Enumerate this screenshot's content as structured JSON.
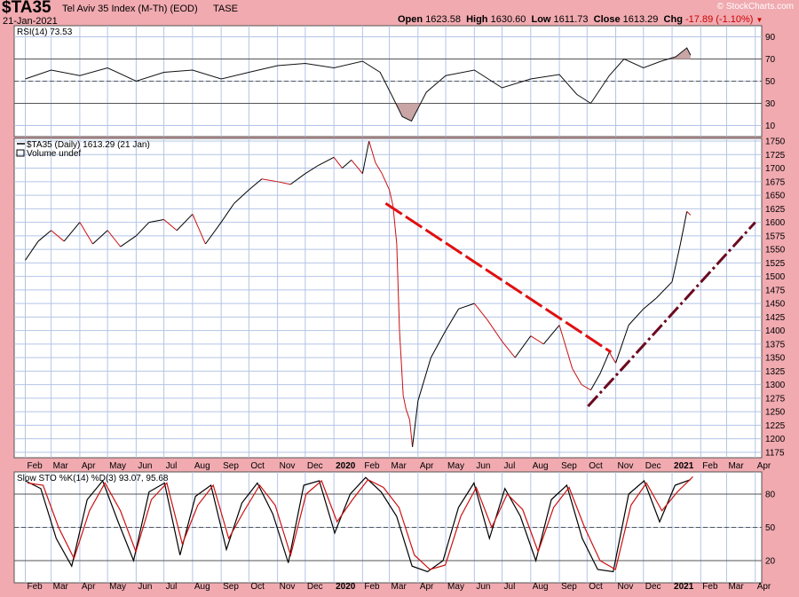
{
  "header": {
    "symbol": "$TA35",
    "name": "Tel Aviv 35 Index (M-Th) (EOD)",
    "exchange": "TASE",
    "date": "21-Jan-2021",
    "copyright": "© StockCharts.com",
    "quote": {
      "open_label": "Open",
      "open": "1623.58",
      "high_label": "High",
      "high": "1630.60",
      "low_label": "Low",
      "low": "1611.73",
      "close_label": "Close",
      "close": "1613.29",
      "chg_label": "Chg",
      "chg": "-17.89 (-1.10%)"
    }
  },
  "chart_data": [
    {
      "type": "line",
      "panel": "rsi",
      "title": "RSI(14) 73.53",
      "ylim": [
        0,
        100
      ],
      "yticks": [
        10,
        30,
        50,
        70,
        90
      ],
      "reference_lines": [
        30,
        50,
        70
      ],
      "x": [
        "2019-02-01",
        "2019-03-01",
        "2019-04-01",
        "2019-05-01",
        "2019-06-01",
        "2019-07-01",
        "2019-08-01",
        "2019-09-01",
        "2019-10-01",
        "2019-11-01",
        "2019-12-01",
        "2020-01-01",
        "2020-02-01",
        "2020-02-20",
        "2020-03-05",
        "2020-03-15",
        "2020-03-25",
        "2020-04-10",
        "2020-05-01",
        "2020-06-01",
        "2020-07-01",
        "2020-08-01",
        "2020-09-01",
        "2020-09-20",
        "2020-10-05",
        "2020-10-25",
        "2020-11-10",
        "2020-12-01",
        "2020-12-20",
        "2021-01-05",
        "2021-01-17",
        "2021-01-21"
      ],
      "values": [
        52,
        60,
        55,
        62,
        50,
        58,
        60,
        52,
        58,
        64,
        66,
        62,
        68,
        58,
        35,
        18,
        14,
        40,
        55,
        60,
        44,
        52,
        56,
        38,
        30,
        55,
        70,
        62,
        68,
        72,
        80,
        73.5
      ]
    },
    {
      "type": "line",
      "panel": "price",
      "title": "$TA35 (Daily) 1613.29 (21 Jan)",
      "legend": [
        "Volume undef"
      ],
      "ylim": [
        1165,
        1755
      ],
      "yticks": [
        1175,
        1200,
        1225,
        1250,
        1275,
        1300,
        1325,
        1350,
        1375,
        1400,
        1425,
        1450,
        1475,
        1500,
        1525,
        1550,
        1575,
        1600,
        1625,
        1650,
        1675,
        1700,
        1725,
        1750
      ],
      "x": [
        "2019-02-01",
        "2019-02-15",
        "2019-03-01",
        "2019-03-15",
        "2019-04-01",
        "2019-04-15",
        "2019-05-01",
        "2019-05-15",
        "2019-06-01",
        "2019-06-15",
        "2019-07-01",
        "2019-07-15",
        "2019-08-01",
        "2019-08-15",
        "2019-09-01",
        "2019-09-15",
        "2019-10-01",
        "2019-10-15",
        "2019-11-01",
        "2019-11-15",
        "2019-12-01",
        "2019-12-15",
        "2020-01-01",
        "2020-01-10",
        "2020-01-20",
        "2020-02-01",
        "2020-02-08",
        "2020-02-15",
        "2020-02-22",
        "2020-03-01",
        "2020-03-05",
        "2020-03-09",
        "2020-03-12",
        "2020-03-16",
        "2020-03-19",
        "2020-03-23",
        "2020-03-26",
        "2020-04-01",
        "2020-04-15",
        "2020-05-01",
        "2020-05-15",
        "2020-06-01",
        "2020-06-15",
        "2020-07-01",
        "2020-07-15",
        "2020-08-01",
        "2020-08-15",
        "2020-09-01",
        "2020-09-15",
        "2020-09-25",
        "2020-10-05",
        "2020-10-15",
        "2020-10-25",
        "2020-11-01",
        "2020-11-15",
        "2020-12-01",
        "2020-12-15",
        "2021-01-01",
        "2021-01-10",
        "2021-01-17",
        "2021-01-21"
      ],
      "values": [
        1530,
        1565,
        1585,
        1565,
        1600,
        1560,
        1585,
        1555,
        1575,
        1600,
        1605,
        1585,
        1615,
        1560,
        1600,
        1635,
        1660,
        1680,
        1675,
        1670,
        1690,
        1705,
        1720,
        1700,
        1715,
        1690,
        1750,
        1710,
        1690,
        1660,
        1630,
        1560,
        1400,
        1280,
        1255,
        1235,
        1185,
        1270,
        1350,
        1400,
        1440,
        1450,
        1420,
        1380,
        1350,
        1390,
        1375,
        1410,
        1330,
        1300,
        1290,
        1320,
        1360,
        1340,
        1410,
        1440,
        1460,
        1490,
        1560,
        1620,
        1613.29
      ],
      "trendlines": [
        {
          "from": [
            "2020-02-26",
            1635
          ],
          "to": [
            "2020-10-27",
            1360
          ],
          "color": "#e01010",
          "style": "dashed"
        },
        {
          "from": [
            "2020-10-02",
            1260
          ],
          "to": [
            "2021-04-01",
            1600
          ],
          "color": "#6b0a1f",
          "style": "dash-dot"
        }
      ],
      "colors": {
        "up": "#000000",
        "down": "#cc1010"
      }
    },
    {
      "type": "line",
      "panel": "stochastic",
      "title": "Slow STO %K(14) %D(3) 93.07, 95.68",
      "ylim": [
        0,
        100
      ],
      "yticks": [
        20,
        50,
        80
      ],
      "reference_lines": [
        20,
        50,
        80
      ],
      "series": [
        {
          "name": "%K(14)",
          "color": "#000000",
          "values": [
            92,
            85,
            40,
            15,
            75,
            92,
            55,
            20,
            82,
            90,
            25,
            78,
            88,
            30,
            72,
            90,
            62,
            18,
            88,
            92,
            45,
            80,
            95,
            82,
            60,
            15,
            10,
            20,
            68,
            90,
            40,
            85,
            60,
            20,
            75,
            88,
            40,
            12,
            10,
            80,
            92,
            55,
            88,
            93.07
          ]
        },
        {
          "name": "%D(3)",
          "color": "#cc1010",
          "values": [
            90,
            88,
            50,
            22,
            65,
            90,
            65,
            28,
            75,
            90,
            35,
            70,
            88,
            40,
            65,
            88,
            70,
            25,
            80,
            92,
            55,
            75,
            93,
            86,
            68,
            25,
            12,
            16,
            60,
            86,
            50,
            80,
            66,
            28,
            68,
            86,
            50,
            20,
            12,
            70,
            90,
            65,
            82,
            95.68
          ]
        }
      ],
      "x_start": "2019-02-01",
      "x_end": "2021-01-21"
    }
  ],
  "axes": {
    "x_labels": [
      "Feb",
      "Mar",
      "Apr",
      "May",
      "Jun",
      "Jul",
      "Aug",
      "Sep",
      "Oct",
      "Nov",
      "Dec",
      "2020",
      "Feb",
      "Mar",
      "Apr",
      "May",
      "Jun",
      "Jul",
      "Aug",
      "Sep",
      "Oct",
      "Nov",
      "Dec",
      "2021",
      "Feb",
      "Mar",
      "Apr"
    ],
    "x_label_dates": [
      "2019-02-01",
      "2019-03-01",
      "2019-04-01",
      "2019-05-01",
      "2019-06-01",
      "2019-07-01",
      "2019-08-01",
      "2019-09-01",
      "2019-10-01",
      "2019-11-01",
      "2019-12-01",
      "2020-01-01",
      "2020-02-01",
      "2020-03-01",
      "2020-04-01",
      "2020-05-01",
      "2020-06-01",
      "2020-07-01",
      "2020-08-01",
      "2020-09-01",
      "2020-10-01",
      "2020-11-01",
      "2020-12-01",
      "2021-01-01",
      "2021-02-01",
      "2021-03-01",
      "2021-04-01"
    ],
    "x_start": "2019-01-20",
    "x_end": "2021-04-08"
  },
  "colors": {
    "background": "#f0aab0",
    "plot_bg": "#ffffff",
    "grid": "#b4c4e6",
    "rsi_fill": "#c9a5a5"
  }
}
